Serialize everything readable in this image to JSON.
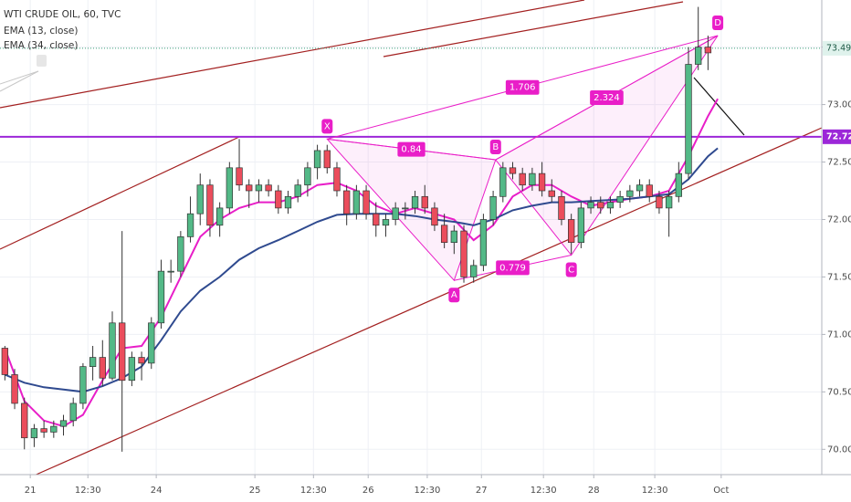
{
  "chart_data": {
    "type": "candlestick",
    "title": "WTI CRUDE OIL, 60, TVC",
    "legend": "top-left",
    "grid": true,
    "up_color": "#53b987",
    "down_color": "#eb4d5c",
    "xlim": [
      -1,
      167.3
    ],
    "ylim": [
      69.78,
      73.91
    ],
    "xticks": [
      {
        "value": 5.2,
        "label": "21"
      },
      {
        "value": 17,
        "label": "12:30"
      },
      {
        "value": 31,
        "label": "24"
      },
      {
        "value": 51.2,
        "label": "25"
      },
      {
        "value": 63.2,
        "label": "12:30"
      },
      {
        "value": 74.4,
        "label": "26"
      },
      {
        "value": 86.5,
        "label": "12:30"
      },
      {
        "value": 97.6,
        "label": "27"
      },
      {
        "value": 110.3,
        "label": "12:30"
      },
      {
        "value": 120.6,
        "label": "28"
      },
      {
        "value": 133.1,
        "label": "12:30"
      },
      {
        "value": 146.7,
        "label": "Oct"
      }
    ],
    "yticks": [
      {
        "value": 70,
        "label": "70.00"
      },
      {
        "value": 70.5,
        "label": "70.50"
      },
      {
        "value": 71,
        "label": "71.00"
      },
      {
        "value": 71.5,
        "label": "71.50"
      },
      {
        "value": 72,
        "label": "72.00"
      },
      {
        "value": 72.5,
        "label": "72.50"
      },
      {
        "value": 73,
        "label": "73.00"
      },
      {
        "value": 73.5,
        "label": "73.50"
      }
    ],
    "x": [
      0,
      2,
      4,
      6,
      8,
      10,
      12,
      14,
      16,
      18,
      20,
      22,
      24,
      26,
      28,
      30,
      32,
      34,
      36,
      38,
      40,
      42,
      44,
      46,
      48,
      50,
      52,
      54,
      56,
      58,
      60,
      62,
      64,
      66,
      68,
      70,
      72,
      74,
      76,
      78,
      80,
      82,
      84,
      86,
      88,
      90,
      92,
      94,
      96,
      98,
      100,
      102,
      104,
      106,
      108,
      110,
      112,
      114,
      116,
      118,
      120,
      122,
      124,
      126,
      128,
      130,
      132,
      134,
      136,
      138,
      140,
      142,
      144
    ],
    "ohlc": [
      [
        70.88,
        70.9,
        70.6,
        70.65
      ],
      [
        70.65,
        70.7,
        70.35,
        70.4
      ],
      [
        70.4,
        70.45,
        70.0,
        70.1
      ],
      [
        70.1,
        70.22,
        70.02,
        70.18
      ],
      [
        70.18,
        70.25,
        70.1,
        70.15
      ],
      [
        70.15,
        70.25,
        70.1,
        70.2
      ],
      [
        70.2,
        70.3,
        70.12,
        70.25
      ],
      [
        70.25,
        70.45,
        70.2,
        70.4
      ],
      [
        70.4,
        70.75,
        70.35,
        70.72
      ],
      [
        70.72,
        70.9,
        70.6,
        70.8
      ],
      [
        70.8,
        70.95,
        70.55,
        70.62
      ],
      [
        70.62,
        71.2,
        70.6,
        71.1
      ],
      [
        71.1,
        71.9,
        69.98,
        70.6
      ],
      [
        70.6,
        70.85,
        70.55,
        70.8
      ],
      [
        70.8,
        70.85,
        70.6,
        70.75
      ],
      [
        70.75,
        71.15,
        70.7,
        71.1
      ],
      [
        71.1,
        71.65,
        71.05,
        71.55
      ],
      [
        71.55,
        71.65,
        71.45,
        71.55
      ],
      [
        71.55,
        71.9,
        71.5,
        71.85
      ],
      [
        71.85,
        72.2,
        71.8,
        72.05
      ],
      [
        72.05,
        72.4,
        71.95,
        72.3
      ],
      [
        72.3,
        72.35,
        71.85,
        71.95
      ],
      [
        71.95,
        72.15,
        71.85,
        72.1
      ],
      [
        72.1,
        72.5,
        72.05,
        72.45
      ],
      [
        72.45,
        72.7,
        72.25,
        72.3
      ],
      [
        72.3,
        72.35,
        72.1,
        72.25
      ],
      [
        72.25,
        72.35,
        72.15,
        72.3
      ],
      [
        72.3,
        72.35,
        72.2,
        72.25
      ],
      [
        72.25,
        72.3,
        72.05,
        72.1
      ],
      [
        72.1,
        72.25,
        72.05,
        72.2
      ],
      [
        72.2,
        72.35,
        72.15,
        72.3
      ],
      [
        72.3,
        72.5,
        72.2,
        72.45
      ],
      [
        72.45,
        72.65,
        72.35,
        72.6
      ],
      [
        72.6,
        72.65,
        72.4,
        72.45
      ],
      [
        72.45,
        72.5,
        72.2,
        72.25
      ],
      [
        72.25,
        72.3,
        71.95,
        72.05
      ],
      [
        72.05,
        72.3,
        72.0,
        72.25
      ],
      [
        72.25,
        72.3,
        72.0,
        72.05
      ],
      [
        72.05,
        72.15,
        71.85,
        71.95
      ],
      [
        71.95,
        72.05,
        71.85,
        72.0
      ],
      [
        72.0,
        72.15,
        71.95,
        72.1
      ],
      [
        72.1,
        72.15,
        72.0,
        72.1
      ],
      [
        72.1,
        72.25,
        72.05,
        72.2
      ],
      [
        72.2,
        72.3,
        72.05,
        72.1
      ],
      [
        72.1,
        72.15,
        71.9,
        71.95
      ],
      [
        71.95,
        72.05,
        71.75,
        71.8
      ],
      [
        71.8,
        71.95,
        71.7,
        71.9
      ],
      [
        71.9,
        71.95,
        71.45,
        71.5
      ],
      [
        71.5,
        71.65,
        71.45,
        71.6
      ],
      [
        71.6,
        72.05,
        71.55,
        72.0
      ],
      [
        72.0,
        72.25,
        71.95,
        72.2
      ],
      [
        72.2,
        72.5,
        72.15,
        72.45
      ],
      [
        72.45,
        72.5,
        72.35,
        72.4
      ],
      [
        72.4,
        72.45,
        72.25,
        72.3
      ],
      [
        72.3,
        72.45,
        72.25,
        72.4
      ],
      [
        72.4,
        72.5,
        72.2,
        72.25
      ],
      [
        72.25,
        72.35,
        72.15,
        72.2
      ],
      [
        72.2,
        72.25,
        71.95,
        72.0
      ],
      [
        72.0,
        72.05,
        71.7,
        71.8
      ],
      [
        71.8,
        72.15,
        71.75,
        72.1
      ],
      [
        72.1,
        72.2,
        72.05,
        72.15
      ],
      [
        72.15,
        72.2,
        72.05,
        72.1
      ],
      [
        72.1,
        72.2,
        72.05,
        72.15
      ],
      [
        72.15,
        72.25,
        72.1,
        72.2
      ],
      [
        72.2,
        72.3,
        72.15,
        72.25
      ],
      [
        72.25,
        72.35,
        72.2,
        72.3
      ],
      [
        72.3,
        72.35,
        72.15,
        72.2
      ],
      [
        72.2,
        72.25,
        72.05,
        72.1
      ],
      [
        72.1,
        72.25,
        71.85,
        72.2
      ],
      [
        72.2,
        72.5,
        72.15,
        72.4
      ],
      [
        72.4,
        73.5,
        72.35,
        73.35
      ],
      [
        73.35,
        73.85,
        73.3,
        73.5
      ],
      [
        73.5,
        73.6,
        73.3,
        73.45
      ]
    ],
    "series": [
      {
        "name": "EMA (13, close)",
        "color": "#e81ec8",
        "x": [
          0,
          4,
          8,
          12,
          16,
          20,
          24,
          28,
          32,
          36,
          40,
          44,
          48,
          52,
          56,
          60,
          64,
          68,
          72,
          76,
          80,
          84,
          88,
          92,
          96,
          100,
          104,
          108,
          112,
          116,
          120,
          124,
          128,
          132,
          136,
          140,
          144,
          146
        ],
        "values": [
          70.88,
          70.42,
          70.25,
          70.2,
          70.3,
          70.6,
          70.88,
          70.9,
          71.15,
          71.5,
          71.85,
          72.0,
          72.1,
          72.15,
          72.15,
          72.2,
          72.3,
          72.32,
          72.25,
          72.12,
          72.05,
          72.1,
          72.05,
          72.0,
          71.82,
          71.95,
          72.2,
          72.3,
          72.3,
          72.2,
          72.12,
          72.15,
          72.18,
          72.2,
          72.25,
          72.55,
          72.9,
          73.05
        ]
      },
      {
        "name": "EMA (34, close)",
        "color": "#2f4a8f",
        "x": [
          0,
          4,
          8,
          12,
          16,
          20,
          24,
          28,
          32,
          36,
          40,
          44,
          48,
          52,
          56,
          60,
          64,
          68,
          72,
          76,
          80,
          84,
          88,
          92,
          96,
          100,
          104,
          108,
          112,
          116,
          120,
          124,
          128,
          132,
          136,
          140,
          144,
          146
        ],
        "values": [
          70.65,
          70.58,
          70.54,
          70.52,
          70.5,
          70.55,
          70.62,
          70.72,
          70.95,
          71.2,
          71.38,
          71.5,
          71.65,
          71.75,
          71.82,
          71.9,
          71.98,
          72.04,
          72.05,
          72.05,
          72.05,
          72.03,
          72.0,
          71.98,
          71.95,
          72.0,
          72.08,
          72.12,
          72.15,
          72.15,
          72.16,
          72.17,
          72.18,
          72.2,
          72.22,
          72.35,
          72.55,
          72.62
        ]
      }
    ],
    "last_price": 73.49,
    "horizontal_line": 72.72,
    "pattern": {
      "color": "#e91ec8",
      "points": [
        {
          "label": "X",
          "x": 66,
          "y": 72.7
        },
        {
          "label": "A",
          "x": 92,
          "y": 71.47
        },
        {
          "label": "B",
          "x": 100.5,
          "y": 72.52
        },
        {
          "label": "C",
          "x": 116,
          "y": 71.69
        },
        {
          "label": "D",
          "x": 146,
          "y": 73.6
        }
      ],
      "ratios": [
        0.84,
        0.779,
        1.706,
        2.324
      ]
    }
  }
}
